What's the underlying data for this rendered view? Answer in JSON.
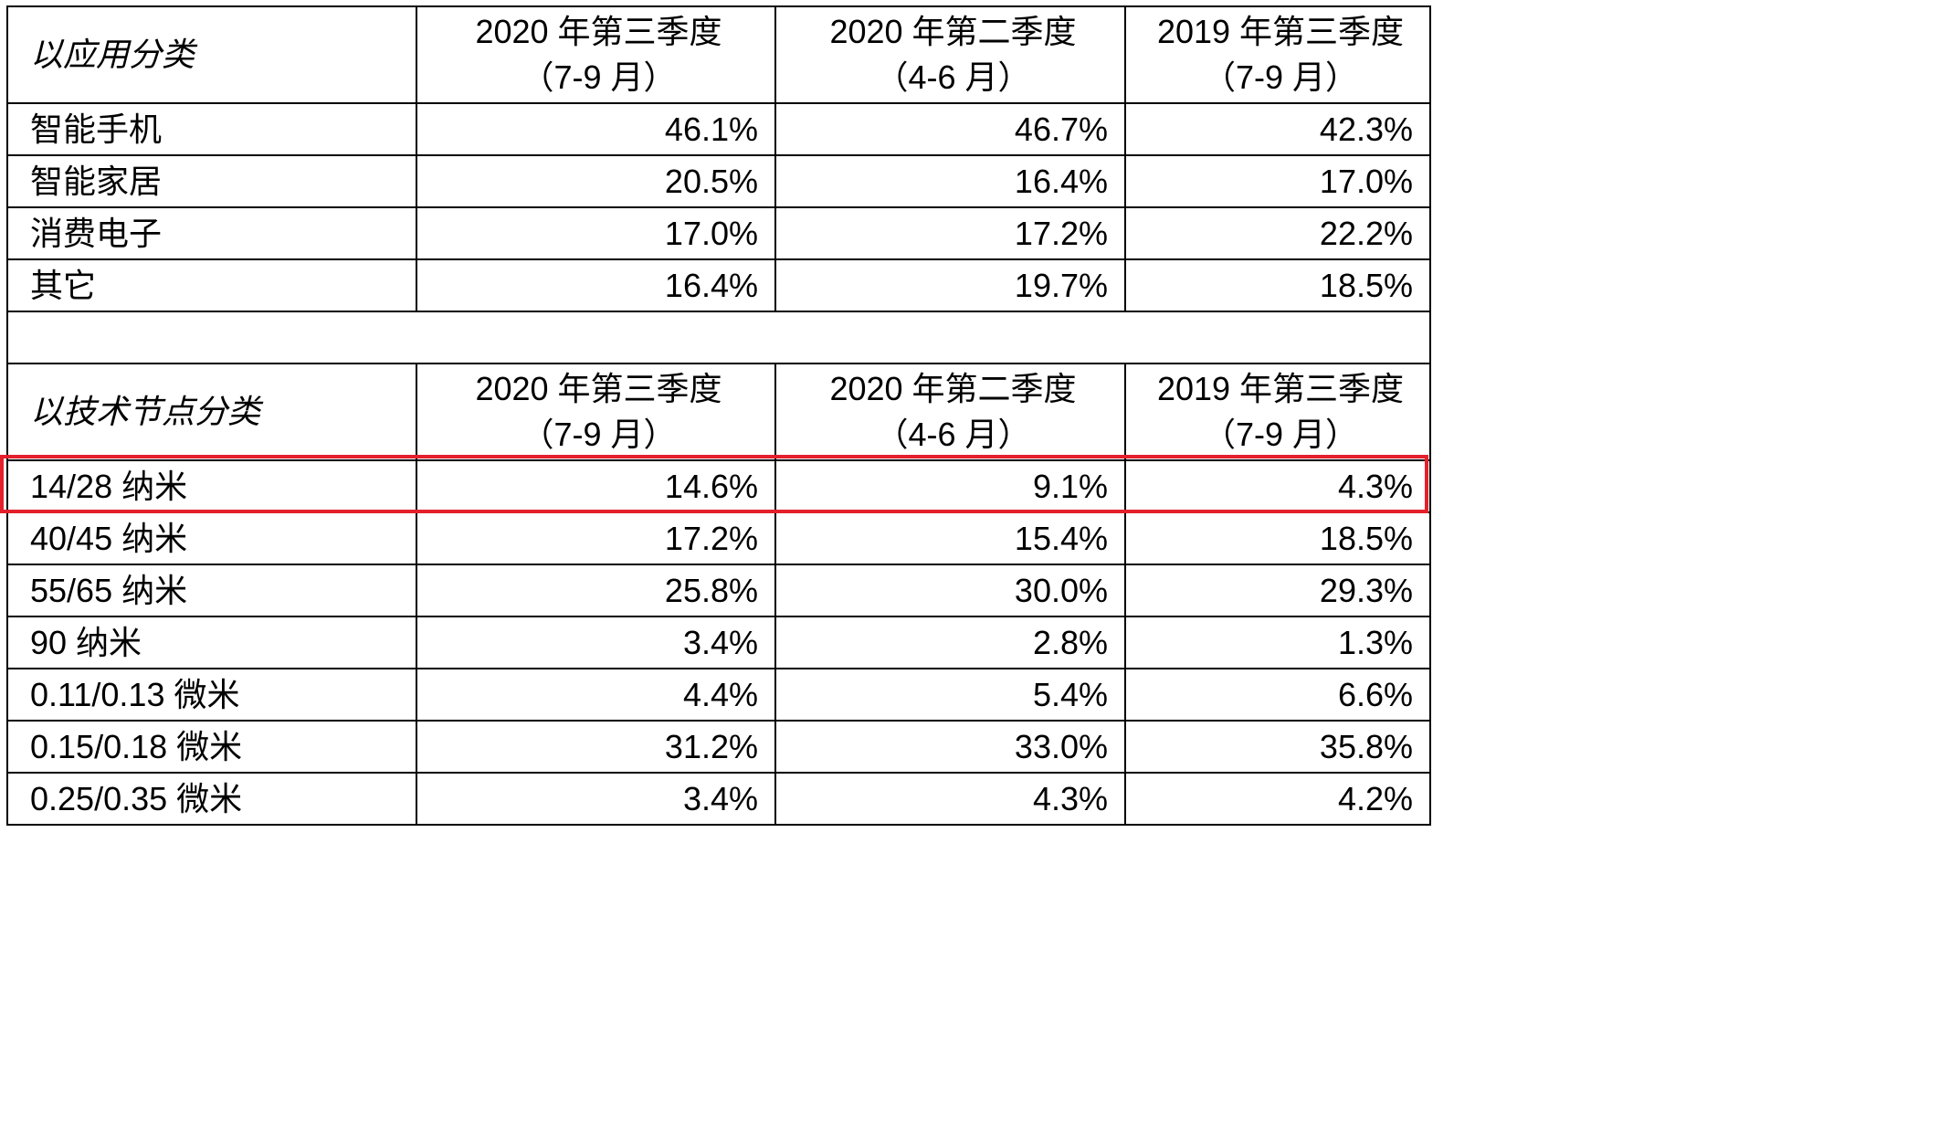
{
  "highlight_color": "#e3202b",
  "sections": [
    {
      "header": {
        "label": "以应用分类",
        "columns": [
          {
            "line1": "2020 年第三季度",
            "line2": "（7-9 月）"
          },
          {
            "line1": "2020 年第二季度",
            "line2": "（4-6 月）"
          },
          {
            "line1": "2019 年第三季度",
            "line2": "（7-9 月）"
          }
        ]
      },
      "rows": [
        {
          "name": "智能手机",
          "values": [
            "46.1%",
            "46.7%",
            "42.3%"
          ]
        },
        {
          "name": "智能家居",
          "values": [
            "20.5%",
            "16.4%",
            "17.0%"
          ]
        },
        {
          "name": "消费电子",
          "values": [
            "17.0%",
            "17.2%",
            "22.2%"
          ]
        },
        {
          "name": "其它",
          "values": [
            "16.4%",
            "19.7%",
            "18.5%"
          ]
        }
      ]
    },
    {
      "header": {
        "label": "以技术节点分类",
        "columns": [
          {
            "line1": "2020 年第三季度",
            "line2": "（7-9 月）"
          },
          {
            "line1": "2020 年第二季度",
            "line2": "（4-6 月）"
          },
          {
            "line1": "2019 年第三季度",
            "line2": "（7-9 月）"
          }
        ]
      },
      "rows": [
        {
          "name": "14/28 纳米",
          "values": [
            "14.6%",
            "9.1%",
            "4.3%"
          ],
          "highlighted": true
        },
        {
          "name": "40/45 纳米",
          "values": [
            "17.2%",
            "15.4%",
            "18.5%"
          ]
        },
        {
          "name": "55/65 纳米",
          "values": [
            "25.8%",
            "30.0%",
            "29.3%"
          ]
        },
        {
          "name": "90 纳米",
          "values": [
            "3.4%",
            "2.8%",
            "1.3%"
          ]
        },
        {
          "name": "0.11/0.13 微米",
          "values": [
            "4.4%",
            "5.4%",
            "6.6%"
          ]
        },
        {
          "name": "0.15/0.18 微米",
          "values": [
            "31.2%",
            "33.0%",
            "35.8%"
          ]
        },
        {
          "name": "0.25/0.35 微米",
          "values": [
            "3.4%",
            "4.3%",
            "4.2%"
          ]
        }
      ]
    }
  ]
}
